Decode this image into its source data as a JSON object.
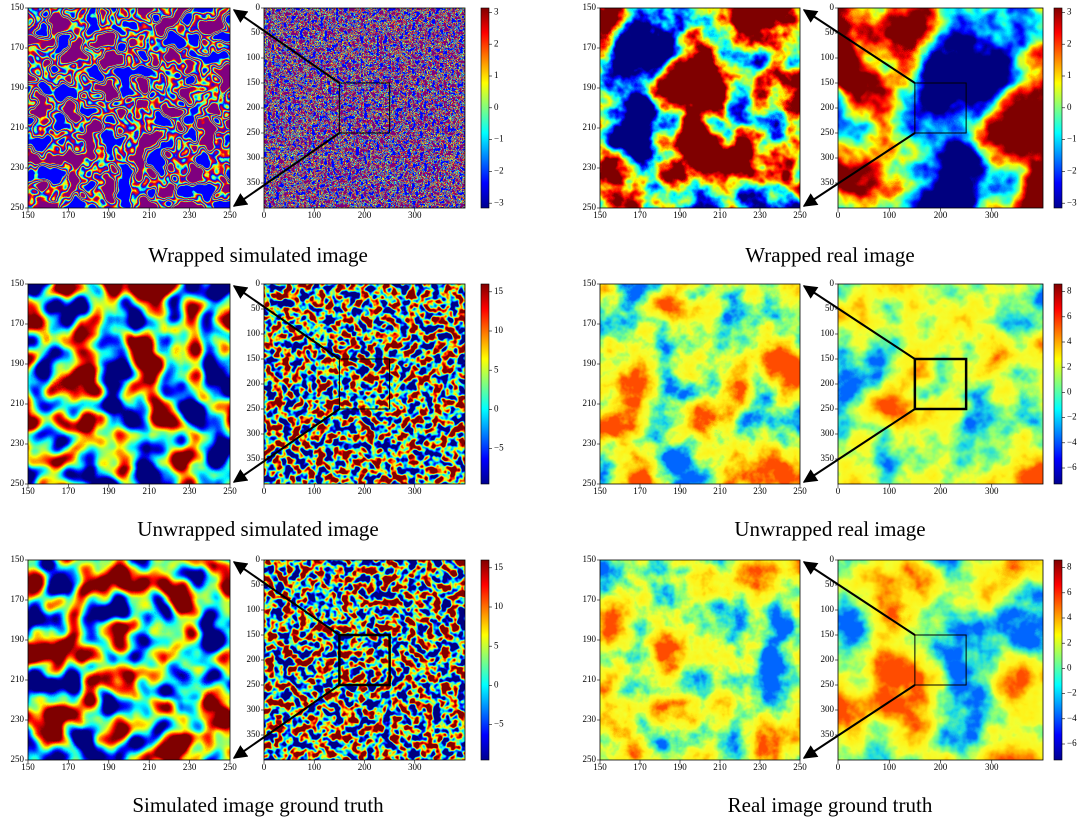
{
  "panels": [
    {
      "caption": "Wrapped simulated image",
      "zoom_x_ticks": [
        "150",
        "170",
        "190",
        "210",
        "230",
        "250"
      ],
      "zoom_y_ticks": [
        "150",
        "170",
        "190",
        "210",
        "230",
        "250"
      ],
      "full_x_ticks": [
        "0",
        "100",
        "200",
        "300"
      ],
      "full_y_ticks": [
        "0",
        "50",
        "100",
        "150",
        "200",
        "250",
        "300",
        "350"
      ],
      "colorbar_ticks": [
        "3",
        "2",
        "1",
        "0",
        "−1",
        "−2",
        "−3"
      ]
    },
    {
      "caption": "Wrapped real image",
      "zoom_x_ticks": [
        "150",
        "170",
        "190",
        "210",
        "230",
        "250"
      ],
      "zoom_y_ticks": [
        "150",
        "170",
        "190",
        "210",
        "230",
        "250"
      ],
      "full_x_ticks": [
        "0",
        "100",
        "200",
        "300"
      ],
      "full_y_ticks": [
        "0",
        "50",
        "100",
        "150",
        "200",
        "250",
        "300",
        "350"
      ],
      "colorbar_ticks": [
        "3",
        "2",
        "1",
        "0",
        "−1",
        "−2",
        "−3"
      ]
    },
    {
      "caption": "Unwrapped simulated image",
      "zoom_x_ticks": [
        "150",
        "170",
        "190",
        "210",
        "230",
        "250"
      ],
      "zoom_y_ticks": [
        "150",
        "170",
        "190",
        "210",
        "230",
        "250"
      ],
      "full_x_ticks": [
        "0",
        "100",
        "200",
        "300"
      ],
      "full_y_ticks": [
        "0",
        "50",
        "100",
        "150",
        "200",
        "250",
        "300",
        "350"
      ],
      "colorbar_ticks": [
        "15",
        "10",
        "5",
        "0",
        "−5"
      ]
    },
    {
      "caption": "Unwrapped real image",
      "zoom_x_ticks": [
        "150",
        "170",
        "190",
        "210",
        "230",
        "250"
      ],
      "zoom_y_ticks": [
        "150",
        "170",
        "190",
        "210",
        "230",
        "250"
      ],
      "full_x_ticks": [
        "0",
        "100",
        "200",
        "300"
      ],
      "full_y_ticks": [
        "0",
        "50",
        "100",
        "150",
        "200",
        "250",
        "300",
        "350"
      ],
      "colorbar_ticks": [
        "8",
        "6",
        "4",
        "2",
        "0",
        "−2",
        "−4",
        "−6"
      ]
    },
    {
      "caption": "Simulated image ground truth",
      "zoom_x_ticks": [
        "150",
        "170",
        "190",
        "210",
        "230",
        "250"
      ],
      "zoom_y_ticks": [
        "150",
        "170",
        "190",
        "210",
        "230",
        "250"
      ],
      "full_x_ticks": [
        "0",
        "100",
        "200",
        "300"
      ],
      "full_y_ticks": [
        "0",
        "50",
        "100",
        "150",
        "200",
        "250",
        "300",
        "350"
      ],
      "colorbar_ticks": [
        "15",
        "10",
        "5",
        "0",
        "−5"
      ]
    },
    {
      "caption": "Real image ground truth",
      "zoom_x_ticks": [
        "150",
        "170",
        "190",
        "210",
        "230",
        "250"
      ],
      "zoom_y_ticks": [
        "150",
        "170",
        "190",
        "210",
        "230",
        "250"
      ],
      "full_x_ticks": [
        "0",
        "100",
        "200",
        "300"
      ],
      "full_y_ticks": [
        "0",
        "50",
        "100",
        "150",
        "200",
        "250",
        "300",
        "350"
      ],
      "colorbar_ticks": [
        "8",
        "6",
        "4",
        "2",
        "0",
        "−2",
        "−4",
        "−6"
      ]
    }
  ]
}
